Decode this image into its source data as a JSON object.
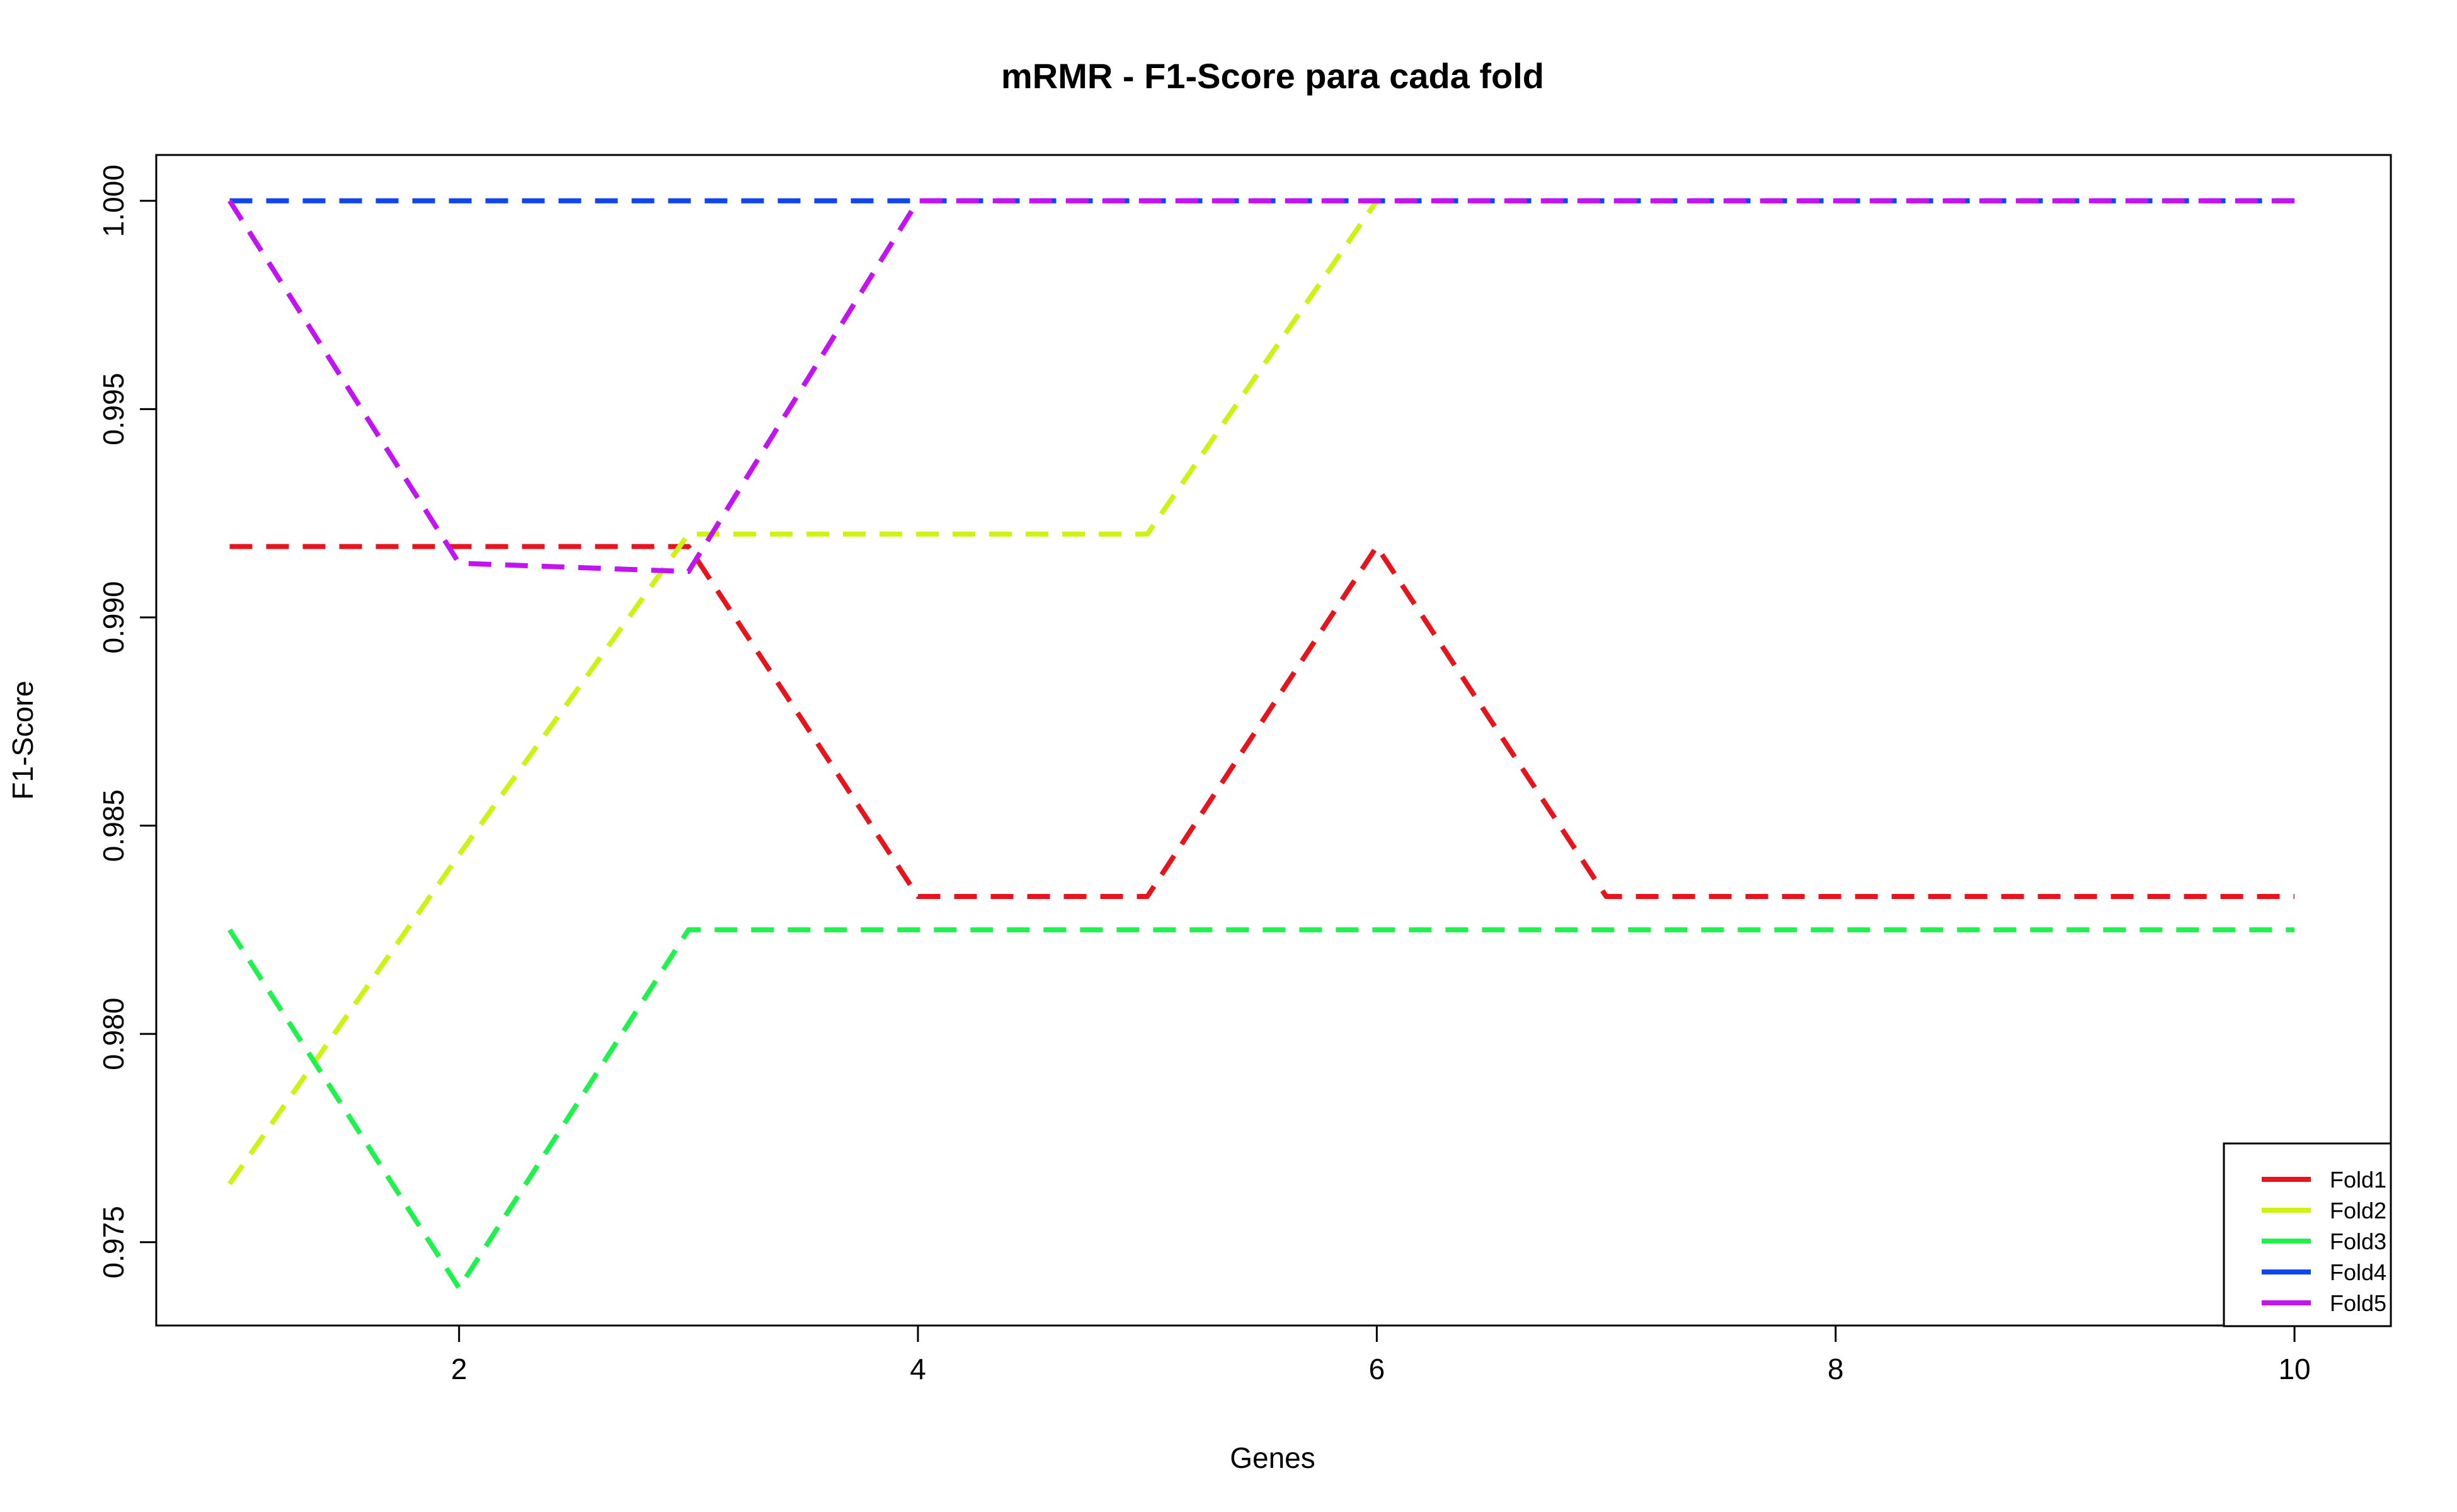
{
  "chart_data": {
    "type": "line",
    "title": "mRMR - F1-Score para cada fold",
    "xlabel": "Genes",
    "ylabel": "F1-Score",
    "xlim": [
      0.68,
      10.42
    ],
    "ylim": [
      0.973,
      1.0011
    ],
    "x_ticks": [
      2,
      4,
      6,
      8,
      10
    ],
    "y_ticks": [
      0.975,
      0.98,
      0.985,
      0.99,
      0.995,
      1.0
    ],
    "x_tick_labels": [
      "2",
      "4",
      "6",
      "8",
      "10"
    ],
    "y_tick_labels": [
      "0.975",
      "0.980",
      "0.985",
      "0.990",
      "0.995",
      "1.000"
    ],
    "grid": false,
    "line_style": "dashed",
    "legend_position": "bottom-right",
    "x": [
      1,
      2,
      3,
      4,
      5,
      6,
      7,
      8,
      9,
      10
    ],
    "series": [
      {
        "name": "Fold1",
        "color": "#e8141c",
        "values": [
          0.9917,
          0.9917,
          0.9917,
          0.9833,
          0.9833,
          0.9917,
          0.9833,
          0.9833,
          0.9833,
          0.9833
        ]
      },
      {
        "name": "Fold2",
        "color": "#cdf214",
        "values": [
          0.9764,
          0.9843,
          0.992,
          0.992,
          0.992,
          1.0,
          1.0,
          1.0,
          1.0,
          1.0
        ]
      },
      {
        "name": "Fold3",
        "color": "#1ff24d",
        "values": [
          0.9825,
          0.9739,
          0.9825,
          0.9825,
          0.9825,
          0.9825,
          0.9825,
          0.9825,
          0.9825,
          0.9825
        ]
      },
      {
        "name": "Fold4",
        "color": "#1046f0",
        "values": [
          1.0,
          1.0,
          1.0,
          1.0,
          1.0,
          1.0,
          1.0,
          1.0,
          1.0,
          1.0
        ]
      },
      {
        "name": "Fold5",
        "color": "#c214f2",
        "values": [
          1.0,
          0.9913,
          0.9911,
          1.0,
          1.0,
          1.0,
          1.0,
          1.0,
          1.0,
          1.0
        ]
      }
    ]
  }
}
